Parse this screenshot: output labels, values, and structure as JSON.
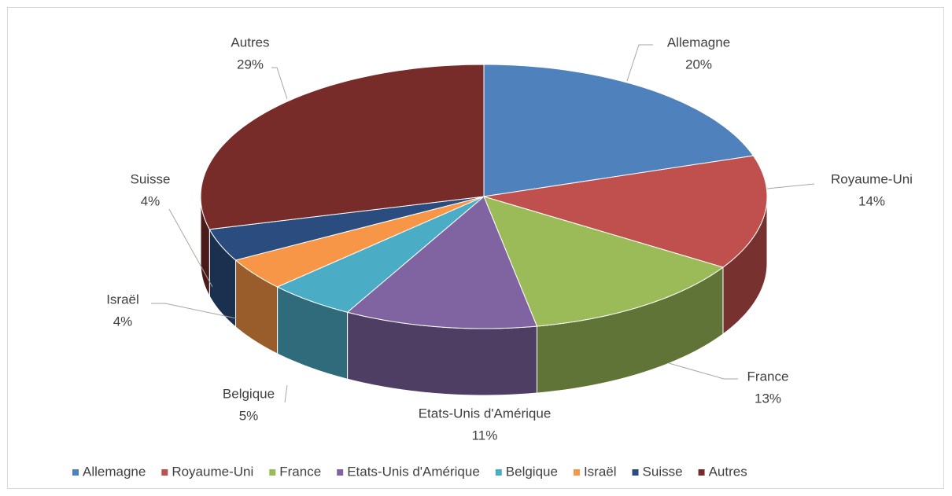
{
  "chart_data": {
    "type": "pie",
    "categories": [
      "Allemagne",
      "Royaume-Uni",
      "France",
      "Etats-Unis d'Amérique",
      "Belgique",
      "Israël",
      "Suisse",
      "Autres"
    ],
    "values": [
      20,
      14,
      13,
      11,
      5,
      4,
      4,
      29
    ],
    "value_labels": [
      "20%",
      "14%",
      "13%",
      "11%",
      "5%",
      "4%",
      "4%",
      "29%"
    ],
    "colors": [
      "#4f81bd",
      "#c0504d",
      "#9bbb59",
      "#8064a2",
      "#4bacc6",
      "#f79646",
      "#2b4c7e",
      "#772c2a"
    ],
    "legend": "bottom"
  }
}
